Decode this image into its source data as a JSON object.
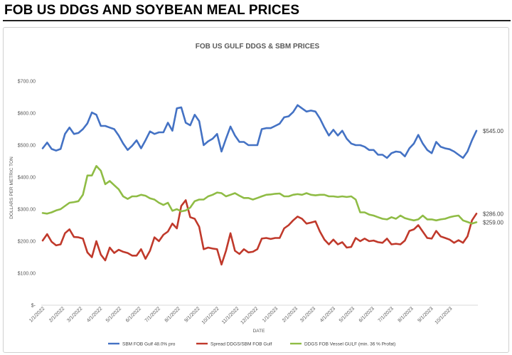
{
  "page": {
    "heading": "FOB US DDGS AND SOYBEAN MEAL PRICES"
  },
  "colors": {
    "sbm": "#4472c4",
    "spread": "#c0392b",
    "ddgs": "#8fbc45",
    "text": "#595959"
  },
  "chart_data": {
    "type": "line",
    "title": "FOB US GULF DDGS & SBM PRICES",
    "xlabel": "DATE",
    "ylabel": "DOLLARS PER METRIC TON",
    "ylim": [
      0,
      700
    ],
    "yticks": [
      0,
      100,
      200,
      300,
      400,
      500,
      600,
      700
    ],
    "ytick_labels": [
      "$-",
      "$100.00",
      "$200.00",
      "$300.00",
      "$400.00",
      "$500.00",
      "$600.00",
      "$700.00"
    ],
    "grid": false,
    "legend_position": "bottom",
    "x_labels": [
      "1/1/2022",
      "2/1/2022",
      "3/1/2022",
      "4/1/2022",
      "5/1/2022",
      "6/1/2022",
      "7/1/2022",
      "8/1/2022",
      "9/1/2022",
      "10/1/2022",
      "11/1/2022",
      "12/1/2022",
      "1/1/2023",
      "2/1/2023",
      "3/1/2023",
      "4/1/2023",
      "5/1/2023",
      "6/1/2023",
      "7/1/2023",
      "8/1/2023",
      "9/1/2023",
      "10/1/2023"
    ],
    "x_label_weeks": [
      0,
      4.43,
      8.43,
      12.86,
      17.14,
      21.57,
      25.86,
      30.29,
      34.71,
      39,
      43.43,
      47.71,
      52.14,
      56.57,
      60.57,
      65,
      69.29,
      73.71,
      78,
      82.43,
      86.86,
      91.14
    ],
    "end_labels": [
      "$545.00",
      "$286.00",
      "$259.00"
    ],
    "series": [
      {
        "name": "SBM FOB Gulf 48.0% pro",
        "color_key": "sbm",
        "end_label": "$545.00",
        "values": [
          490,
          508,
          488,
          483,
          488,
          535,
          555,
          535,
          538,
          550,
          568,
          602,
          595,
          560,
          560,
          555,
          550,
          530,
          505,
          485,
          498,
          515,
          490,
          515,
          543,
          535,
          540,
          540,
          570,
          545,
          615,
          618,
          570,
          562,
          595,
          575,
          500,
          512,
          520,
          535,
          480,
          520,
          558,
          530,
          510,
          510,
          500,
          500,
          500,
          550,
          553,
          553,
          560,
          567,
          587,
          590,
          603,
          625,
          615,
          605,
          608,
          605,
          583,
          555,
          530,
          548,
          530,
          545,
          520,
          505,
          500,
          500,
          495,
          485,
          485,
          470,
          470,
          460,
          475,
          480,
          478,
          465,
          490,
          505,
          532,
          505,
          485,
          475,
          510,
          495,
          490,
          487,
          480,
          470,
          460,
          480,
          515,
          545
        ]
      },
      {
        "name": "Spread DDGS/SBM FOB Gulf",
        "color_key": "spread",
        "end_label": "$286.00",
        "values": [
          202,
          222,
          198,
          187,
          190,
          225,
          237,
          213,
          212,
          208,
          165,
          150,
          200,
          158,
          140,
          180,
          163,
          173,
          167,
          163,
          155,
          155,
          175,
          145,
          170,
          212,
          200,
          220,
          230,
          255,
          240,
          310,
          328,
          275,
          270,
          245,
          175,
          180,
          177,
          175,
          127,
          170,
          225,
          170,
          160,
          175,
          165,
          167,
          175,
          208,
          210,
          207,
          210,
          210,
          240,
          250,
          265,
          277,
          270,
          255,
          258,
          262,
          230,
          205,
          190,
          205,
          190,
          197,
          180,
          182,
          210,
          200,
          208,
          200,
          202,
          197,
          195,
          208,
          190,
          192,
          190,
          202,
          232,
          237,
          250,
          230,
          210,
          208,
          232,
          215,
          210,
          205,
          195,
          203,
          195,
          215,
          265,
          286
        ]
      },
      {
        "name": "DDGS FOB Vessel GULF  (min. 36 % Profat)",
        "color_key": "ddgs",
        "end_label": "$259.00",
        "values": [
          288,
          286,
          290,
          296,
          300,
          310,
          320,
          322,
          325,
          345,
          405,
          405,
          435,
          420,
          378,
          388,
          375,
          362,
          340,
          332,
          340,
          340,
          345,
          342,
          334,
          330,
          320,
          313,
          320,
          295,
          300,
          293,
          296,
          305,
          325,
          330,
          330,
          340,
          345,
          352,
          350,
          340,
          345,
          350,
          342,
          335,
          335,
          330,
          335,
          340,
          345,
          346,
          348,
          349,
          340,
          340,
          345,
          347,
          345,
          350,
          345,
          343,
          345,
          345,
          340,
          340,
          338,
          340,
          338,
          340,
          330,
          290,
          290,
          283,
          280,
          275,
          270,
          268,
          275,
          270,
          280,
          272,
          268,
          265,
          268,
          280,
          268,
          268,
          265,
          268,
          270,
          275,
          278,
          280,
          265,
          260,
          255,
          259
        ]
      }
    ]
  }
}
